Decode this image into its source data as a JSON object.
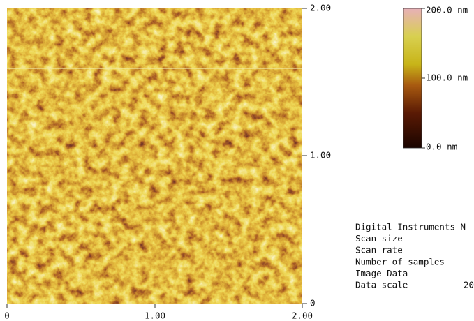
{
  "right_axis": {
    "ticks": [
      "2.00",
      "1.00",
      "0"
    ]
  },
  "bottom_axis": {
    "ticks": [
      "0",
      "1.00",
      "2.00"
    ]
  },
  "colorbar": {
    "labels": [
      "200.0 nm",
      "100.0 nm",
      "0.0 nm"
    ]
  },
  "info": {
    "lines": [
      "Digital Instruments N",
      "Scan size",
      "Scan rate",
      "Number of samples",
      "Image Data",
      "Data scale"
    ],
    "data_scale_value": "20"
  }
}
